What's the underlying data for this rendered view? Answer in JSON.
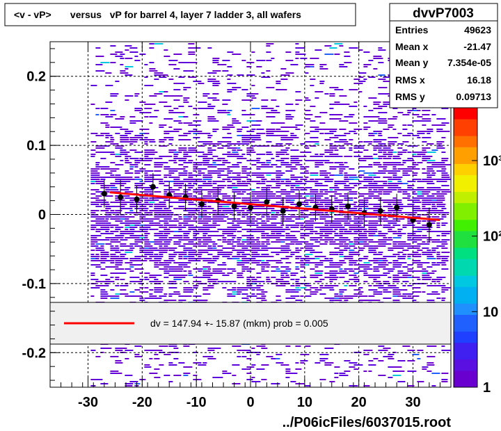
{
  "title": "<v - vP>       versus   vP for barrel 4, layer 7 ladder 3, all wafers",
  "stats": {
    "name": "dvvP7003",
    "rows": [
      {
        "label": "Entries",
        "value": "49623"
      },
      {
        "label": "Mean x",
        "value": "-21.47"
      },
      {
        "label": "Mean y",
        "value": "7.354e-05"
      },
      {
        "label": "RMS x",
        "value": "16.18"
      },
      {
        "label": "RMS y",
        "value": "0.09713"
      }
    ]
  },
  "legend": {
    "text": "dv =  147.94 +- 15.87 (mkm) prob = 0.005",
    "line_color": "#ff0000"
  },
  "footer": "../P06icFiles/6037015.root",
  "palette": {
    "low": "#6a00d0",
    "mid_blue": "#2060ff",
    "cyan": "#00c8e0",
    "green": "#20d020",
    "yellow": "#f0f000",
    "orange": "#ff9900",
    "red": "#ff0000",
    "profile": "#000000",
    "open_markers": "#d010d0"
  },
  "chart_data": {
    "type": "heatmap",
    "xlim": [
      -37,
      37
    ],
    "ylim": [
      -0.25,
      0.25
    ],
    "x_ticks": [
      -30,
      -20,
      -10,
      0,
      10,
      20,
      30
    ],
    "x_tick_labels": [
      "-30",
      "-20",
      "-10",
      "0",
      "10",
      "20",
      "30"
    ],
    "y_ticks": [
      0.2,
      0.1,
      0,
      -0.1,
      -0.2
    ],
    "y_tick_labels": [
      "0.2",
      "0.1",
      "0",
      "-0.1",
      "-0.2"
    ],
    "z_scale": "log",
    "z_ticks": [
      1,
      10,
      100,
      1000
    ],
    "z_tick_labels": [
      "1",
      "10",
      "10²",
      "10³"
    ],
    "grid": true,
    "fit": {
      "type": "line",
      "x": [
        -26,
        35
      ],
      "y": [
        0.032,
        -0.008
      ],
      "color": "#ff0000"
    },
    "profile": {
      "x": [
        -27,
        -24,
        -21,
        -18,
        -15,
        -12,
        -9,
        -6,
        -3,
        0,
        3,
        6,
        9,
        12,
        15,
        18,
        21,
        24,
        27,
        30,
        33
      ],
      "y": [
        0.03,
        0.025,
        0.022,
        0.04,
        0.028,
        0.025,
        0.015,
        0.02,
        0.012,
        0.01,
        0.018,
        0.005,
        0.015,
        0.01,
        0.008,
        0.012,
        0.002,
        0.005,
        0.01,
        -0.008,
        -0.015
      ],
      "err": [
        0.02,
        0.025,
        0.02,
        0.02,
        0.02,
        0.02,
        0.02,
        0.02,
        0.02,
        0.02,
        0.02,
        0.02,
        0.02,
        0.02,
        0.02,
        0.02,
        0.02,
        0.02,
        0.02,
        0.02,
        0.025
      ]
    }
  }
}
